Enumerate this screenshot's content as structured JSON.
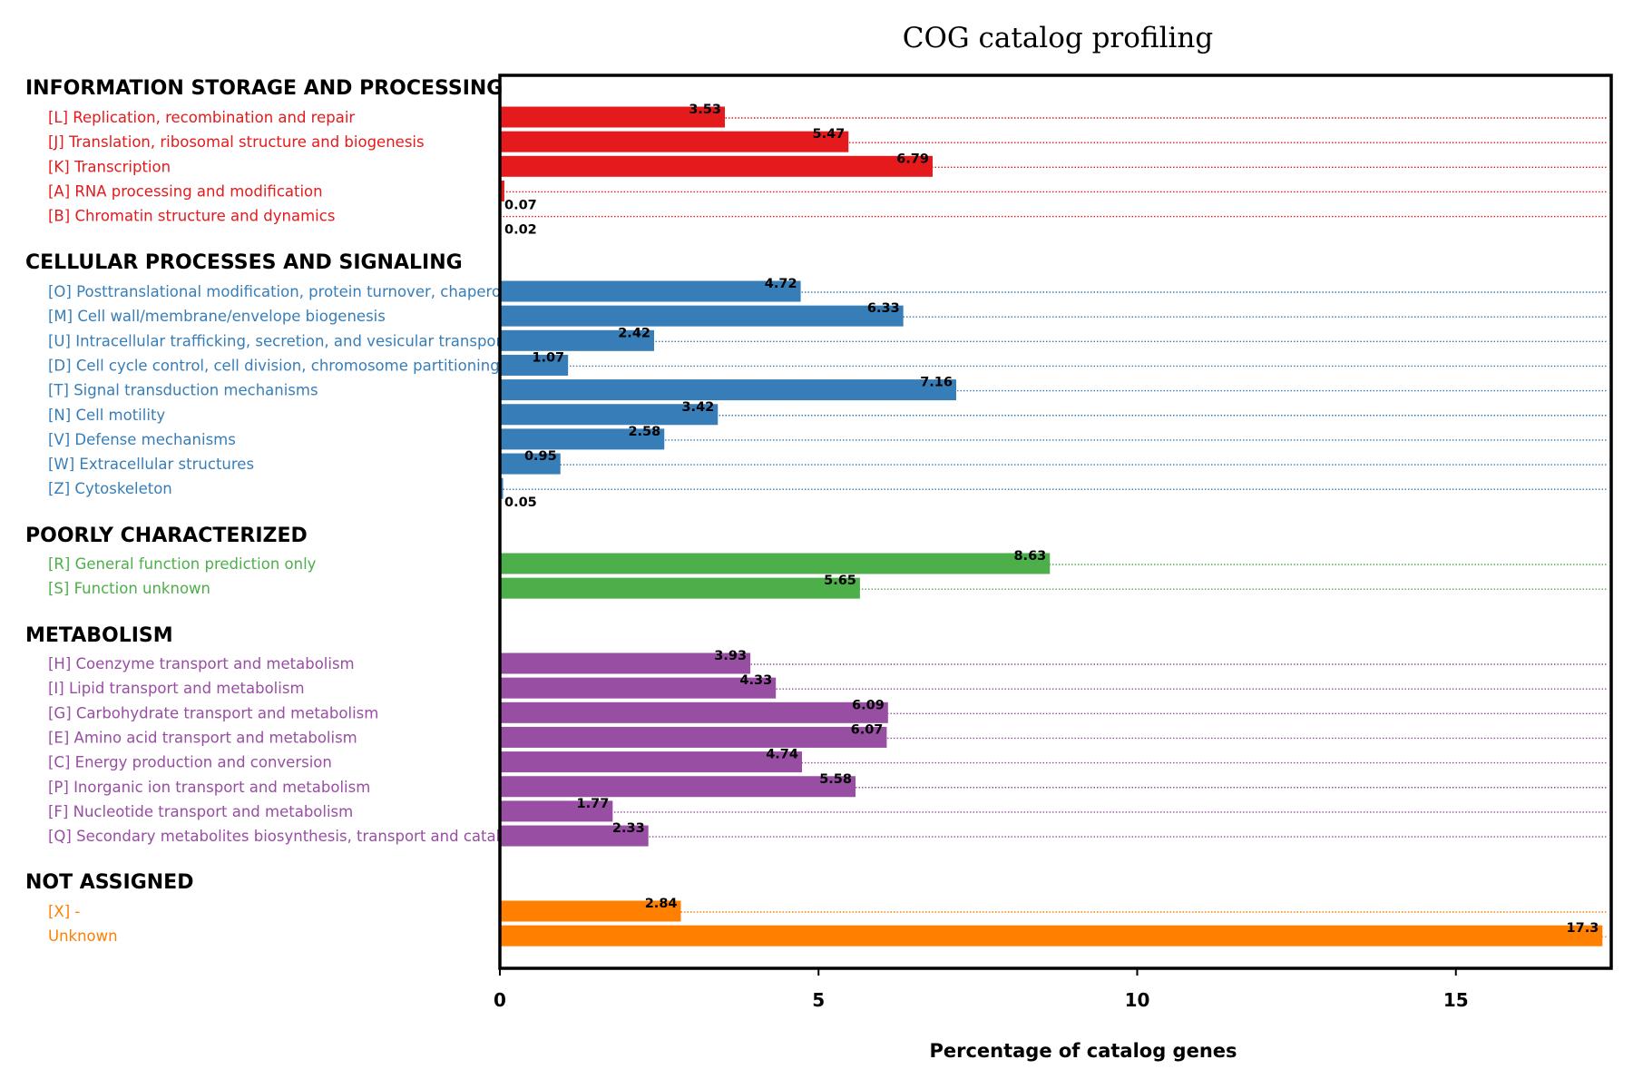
{
  "chart_data": {
    "type": "bar",
    "orientation": "horizontal",
    "title": "COG catalog profiling",
    "xlabel": "Percentage of catalog genes",
    "xlim": [
      0,
      17.5
    ],
    "xticks": [
      0,
      5,
      10,
      15
    ],
    "grid": "dotted line per row",
    "groups": [
      {
        "name": "INFORMATION STORAGE AND PROCESSING",
        "color": "#e41a1c",
        "items": [
          {
            "label": "[L] Replication, recombination and repair",
            "value": 3.53,
            "value_label": "3.53"
          },
          {
            "label": "[J] Translation, ribosomal structure and biogenesis",
            "value": 5.47,
            "value_label": "5.47"
          },
          {
            "label": "[K] Transcription",
            "value": 6.79,
            "value_label": "6.79"
          },
          {
            "label": "[A] RNA processing and modification",
            "value": 0.07,
            "value_label": "0.07"
          },
          {
            "label": "[B] Chromatin structure and dynamics",
            "value": 0.02,
            "value_label": "0.02"
          }
        ]
      },
      {
        "name": "CELLULAR PROCESSES AND SIGNALING",
        "color": "#377eb8",
        "items": [
          {
            "label": "[O] Posttranslational modification, protein turnover, chapero",
            "value": 4.72,
            "value_label": "4.72"
          },
          {
            "label": "[M] Cell wall/membrane/envelope biogenesis",
            "value": 6.33,
            "value_label": "6.33"
          },
          {
            "label": "[U] Intracellular trafficking, secretion, and vesicular transport",
            "value": 2.42,
            "value_label": "2.42"
          },
          {
            "label": "[D] Cell cycle control, cell division, chromosome partitioning",
            "value": 1.07,
            "value_label": "1.07"
          },
          {
            "label": "[T] Signal transduction mechanisms",
            "value": 7.16,
            "value_label": "7.16"
          },
          {
            "label": "[N] Cell motility",
            "value": 3.42,
            "value_label": "3.42"
          },
          {
            "label": "[V] Defense mechanisms",
            "value": 2.58,
            "value_label": "2.58"
          },
          {
            "label": "[W] Extracellular structures",
            "value": 0.95,
            "value_label": "0.95"
          },
          {
            "label": "[Z] Cytoskeleton",
            "value": 0.05,
            "value_label": "0.05"
          }
        ]
      },
      {
        "name": "POORLY CHARACTERIZED",
        "color": "#4daf4a",
        "items": [
          {
            "label": "[R] General function prediction only",
            "value": 8.63,
            "value_label": "8.63"
          },
          {
            "label": "[S] Function unknown",
            "value": 5.65,
            "value_label": "5.65"
          }
        ]
      },
      {
        "name": "METABOLISM",
        "color": "#984ea3",
        "items": [
          {
            "label": "[H] Coenzyme transport and metabolism",
            "value": 3.93,
            "value_label": "3.93"
          },
          {
            "label": "[I] Lipid transport and metabolism",
            "value": 4.33,
            "value_label": "4.33"
          },
          {
            "label": "[G] Carbohydrate transport and metabolism",
            "value": 6.09,
            "value_label": "6.09"
          },
          {
            "label": "[E] Amino acid transport and metabolism",
            "value": 6.07,
            "value_label": "6.07"
          },
          {
            "label": "[C] Energy production and conversion",
            "value": 4.74,
            "value_label": "4.74"
          },
          {
            "label": "[P] Inorganic ion transport and metabolism",
            "value": 5.58,
            "value_label": "5.58"
          },
          {
            "label": "[F] Nucleotide transport and metabolism",
            "value": 1.77,
            "value_label": "1.77"
          },
          {
            "label": "[Q] Secondary metabolites biosynthesis, transport and catab",
            "value": 2.33,
            "value_label": "2.33"
          }
        ]
      },
      {
        "name": "NOT ASSIGNED",
        "color": "#ff7f00",
        "items": [
          {
            "label": "[X] -",
            "value": 2.84,
            "value_label": "2.84"
          },
          {
            "label": "Unknown",
            "value": 17.3,
            "value_label": "17.3"
          }
        ]
      }
    ]
  }
}
